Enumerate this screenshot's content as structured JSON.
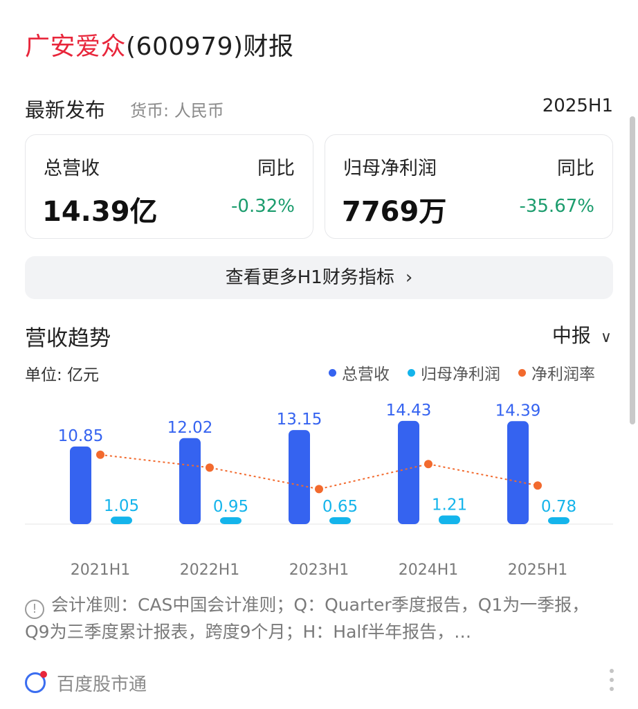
{
  "header": {
    "company_name": "广安爱众",
    "title_rest": "(600979)财报"
  },
  "latest": {
    "title": "最新发布",
    "currency": "货币: 人民币",
    "period": "2025H1"
  },
  "cards": [
    {
      "label": "总营收",
      "yoy_label": "同比",
      "value": "14.39亿",
      "yoy": "-0.32%"
    },
    {
      "label": "归母净利润",
      "yoy_label": "同比",
      "value": "7769万",
      "yoy": "-35.67%"
    }
  ],
  "more_button": {
    "label": "查看更多H1财务指标",
    "icon": "chevron-right-icon"
  },
  "trend": {
    "title": "营收趋势",
    "report_type": "中报",
    "report_icon": "chevron-down-icon",
    "unit": "单位: 亿元"
  },
  "legend": [
    {
      "name": "总营收",
      "color": "#3563f0"
    },
    {
      "name": "归母净利润",
      "color": "#14b4eb"
    },
    {
      "name": "净利润率",
      "color": "#f26a2e"
    }
  ],
  "chart_data": {
    "type": "bar",
    "categories": [
      "2021H1",
      "2022H1",
      "2023H1",
      "2024H1",
      "2025H1"
    ],
    "series": [
      {
        "name": "总营收",
        "kind": "bar",
        "values": [
          10.85,
          12.02,
          13.15,
          14.43,
          14.39
        ],
        "labels": [
          "10.85",
          "12.02",
          "13.15",
          "14.43",
          "14.39"
        ],
        "color": "#3563f0"
      },
      {
        "name": "归母净利润",
        "kind": "bar",
        "values": [
          1.05,
          0.95,
          0.65,
          1.21,
          0.78
        ],
        "labels": [
          "1.05",
          "0.95",
          "0.65",
          "1.21",
          "0.78"
        ],
        "color": "#14b4eb"
      },
      {
        "name": "净利润率",
        "kind": "line",
        "values": [
          9.7,
          7.9,
          4.9,
          8.4,
          5.4
        ],
        "color": "#f26a2e"
      }
    ],
    "ylim": [
      0,
      15
    ]
  },
  "note": {
    "icon": "info-icon",
    "text": "会计准则：CAS中国会计准则；Q：Quarter季度报告，Q1为一季报，Q9为三季度累计报表，跨度9个月；H：Half半年报告，…"
  },
  "footer": {
    "brand": "百度股市通",
    "logo": "baidu-stock-logo",
    "menu_icon": "more-vertical-icon"
  }
}
